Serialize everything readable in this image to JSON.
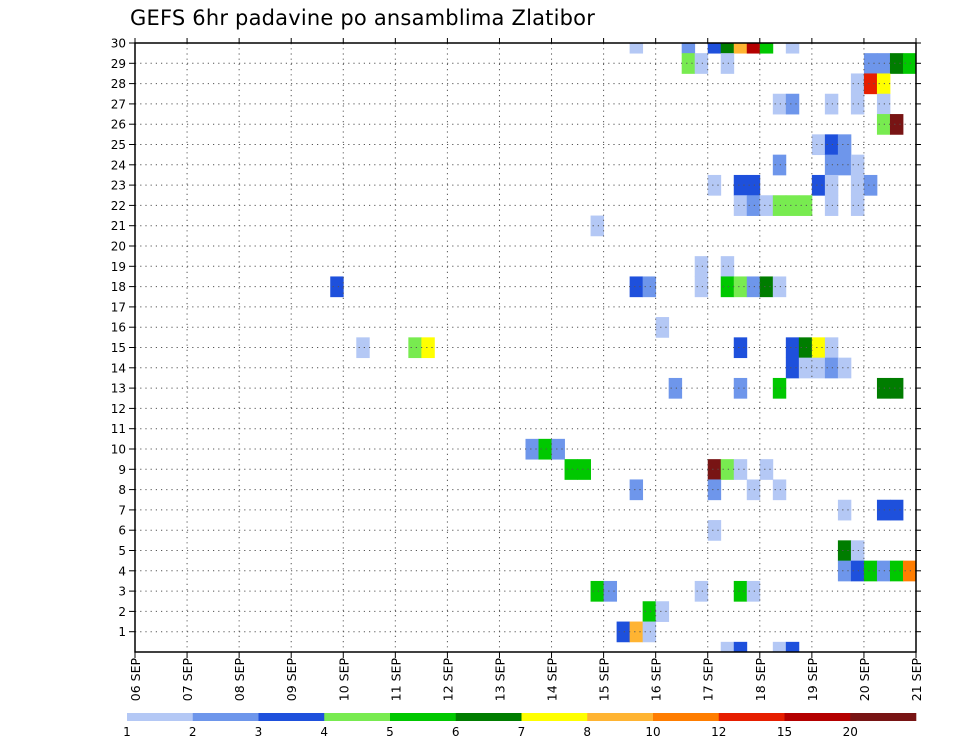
{
  "chart_data": {
    "type": "heatmap",
    "title": "GEFS 6hr padavine po ansamblima Zlatibor",
    "x_tick_labels": [
      "06 SEP",
      "07 SEP",
      "08 SEP",
      "09 SEP",
      "10 SEP",
      "11 SEP",
      "12 SEP",
      "13 SEP",
      "14 SEP",
      "15 SEP",
      "16 SEP",
      "17 SEP",
      "18 SEP",
      "19 SEP",
      "20 SEP",
      "21 SEP"
    ],
    "y_tick_labels": [
      "1",
      "2",
      "3",
      "4",
      "5",
      "6",
      "7",
      "8",
      "9",
      "10",
      "11",
      "12",
      "13",
      "14",
      "15",
      "16",
      "17",
      "18",
      "19",
      "20",
      "21",
      "22",
      "23",
      "24",
      "25",
      "26",
      "27",
      "28",
      "29",
      "30"
    ],
    "xlim_days": [
      0,
      15
    ],
    "ylim_members": [
      0,
      30
    ],
    "grid": "dotted",
    "legend": {
      "placement": "bottom",
      "labels": [
        "1",
        "2",
        "3",
        "4",
        "5",
        "6",
        "7",
        "8",
        "10",
        "12",
        "15",
        "20"
      ],
      "colors": [
        "#b4c8f5",
        "#6e96eb",
        "#1e50dc",
        "#78eb50",
        "#00c800",
        "#007d00",
        "#ffff00",
        "#ffb432",
        "#ff7d00",
        "#e61e00",
        "#b40000",
        "#781414"
      ]
    },
    "color_for_level": {
      "1": "#b4c8f5",
      "2": "#6e96eb",
      "3": "#1e50dc",
      "4": "#78eb50",
      "5": "#00c800",
      "6": "#007d00",
      "7": "#ffff00",
      "8": "#ffb432",
      "10": "#ff7d00",
      "12": "#e61e00",
      "15": "#b40000",
      "20": "#781414"
    },
    "cells_note": "each cell: [member, day_offset_from_06_SEP_start, precip_level_mm]",
    "cells": [
      [
        30,
        9.5,
        1
      ],
      [
        30,
        10.5,
        2
      ],
      [
        30,
        11.0,
        3
      ],
      [
        30,
        11.25,
        6
      ],
      [
        30,
        11.5,
        8
      ],
      [
        30,
        11.75,
        15
      ],
      [
        30,
        12.0,
        5
      ],
      [
        30,
        12.5,
        1
      ],
      [
        29,
        10.5,
        4
      ],
      [
        29,
        10.75,
        1
      ],
      [
        29,
        11.25,
        1
      ],
      [
        29,
        14.0,
        2
      ],
      [
        29,
        14.25,
        2
      ],
      [
        29,
        14.5,
        6
      ],
      [
        29,
        14.75,
        5
      ],
      [
        28,
        13.75,
        1
      ],
      [
        28,
        14.0,
        12
      ],
      [
        28,
        14.25,
        7
      ],
      [
        27,
        12.25,
        1
      ],
      [
        27,
        12.5,
        2
      ],
      [
        27,
        13.25,
        1
      ],
      [
        27,
        13.75,
        1
      ],
      [
        27,
        14.25,
        1
      ],
      [
        26,
        14.25,
        4
      ],
      [
        26,
        14.5,
        20
      ],
      [
        25,
        13.0,
        1
      ],
      [
        25,
        13.25,
        3
      ],
      [
        25,
        13.5,
        2
      ],
      [
        24,
        12.25,
        2
      ],
      [
        24,
        13.25,
        2
      ],
      [
        24,
        13.5,
        2
      ],
      [
        24,
        13.75,
        1
      ],
      [
        23,
        11.0,
        1
      ],
      [
        23,
        11.5,
        3
      ],
      [
        23,
        11.75,
        3
      ],
      [
        23,
        13.0,
        3
      ],
      [
        23,
        13.25,
        1
      ],
      [
        23,
        13.75,
        1
      ],
      [
        23,
        14.0,
        2
      ],
      [
        22,
        11.5,
        1
      ],
      [
        22,
        11.75,
        2
      ],
      [
        22,
        12.0,
        1
      ],
      [
        22,
        12.25,
        4
      ],
      [
        22,
        12.5,
        4
      ],
      [
        22,
        12.75,
        4
      ],
      [
        22,
        13.25,
        1
      ],
      [
        22,
        13.75,
        1
      ],
      [
        21,
        8.75,
        1
      ],
      [
        19,
        10.75,
        1
      ],
      [
        19,
        11.25,
        1
      ],
      [
        18,
        3.75,
        3
      ],
      [
        18,
        9.5,
        3
      ],
      [
        18,
        9.75,
        2
      ],
      [
        18,
        10.75,
        1
      ],
      [
        18,
        11.25,
        5
      ],
      [
        18,
        11.5,
        4
      ],
      [
        18,
        11.75,
        2
      ],
      [
        18,
        12.0,
        6
      ],
      [
        18,
        12.25,
        1
      ],
      [
        16,
        10.0,
        1
      ],
      [
        15,
        4.25,
        1
      ],
      [
        15,
        5.25,
        4
      ],
      [
        15,
        5.5,
        7
      ],
      [
        15,
        11.5,
        3
      ],
      [
        15,
        12.5,
        3
      ],
      [
        15,
        12.75,
        6
      ],
      [
        15,
        13.0,
        7
      ],
      [
        15,
        13.25,
        1
      ],
      [
        14,
        12.5,
        3
      ],
      [
        14,
        12.75,
        1
      ],
      [
        14,
        13.0,
        1
      ],
      [
        14,
        13.25,
        2
      ],
      [
        14,
        13.5,
        1
      ],
      [
        13,
        10.25,
        2
      ],
      [
        13,
        11.5,
        2
      ],
      [
        13,
        12.25,
        5
      ],
      [
        13,
        14.25,
        6
      ],
      [
        13,
        14.5,
        6
      ],
      [
        10,
        7.5,
        2
      ],
      [
        10,
        7.75,
        5
      ],
      [
        10,
        8.0,
        2
      ],
      [
        9,
        8.25,
        5
      ],
      [
        9,
        8.5,
        5
      ],
      [
        9,
        11.0,
        20
      ],
      [
        9,
        11.25,
        4
      ],
      [
        9,
        11.5,
        1
      ],
      [
        9,
        12.0,
        1
      ],
      [
        8,
        9.5,
        2
      ],
      [
        8,
        11.0,
        2
      ],
      [
        8,
        11.75,
        1
      ],
      [
        8,
        12.25,
        1
      ],
      [
        7,
        13.5,
        1
      ],
      [
        7,
        14.25,
        3
      ],
      [
        7,
        14.5,
        3
      ],
      [
        6,
        11.0,
        1
      ],
      [
        5,
        13.5,
        6
      ],
      [
        5,
        13.75,
        1
      ],
      [
        4,
        13.5,
        2
      ],
      [
        4,
        13.75,
        3
      ],
      [
        4,
        14.0,
        5
      ],
      [
        4,
        14.25,
        2
      ],
      [
        4,
        14.5,
        5
      ],
      [
        4,
        14.75,
        10
      ],
      [
        3,
        8.75,
        5
      ],
      [
        3,
        9.0,
        2
      ],
      [
        3,
        10.75,
        1
      ],
      [
        3,
        11.5,
        5
      ],
      [
        3,
        11.75,
        1
      ],
      [
        2,
        9.75,
        5
      ],
      [
        2,
        10.0,
        1
      ],
      [
        1,
        9.25,
        3
      ],
      [
        1,
        9.5,
        8
      ],
      [
        1,
        9.75,
        1
      ],
      [
        0,
        11.25,
        1
      ],
      [
        0,
        11.5,
        3
      ],
      [
        0,
        12.25,
        1
      ],
      [
        0,
        12.5,
        3
      ]
    ]
  }
}
